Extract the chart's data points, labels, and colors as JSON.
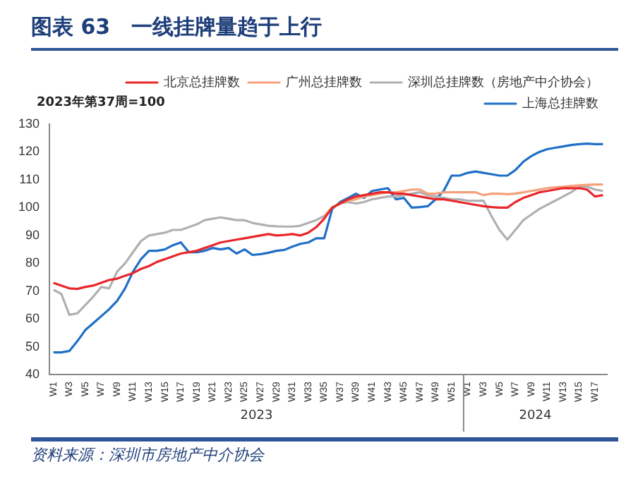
{
  "chart_data": {
    "type": "line",
    "title": "图表 63　一线挂牌量趋于上行",
    "subtitle": "2023年第37周=100",
    "categories": [
      "W1",
      null,
      "W3",
      null,
      "W5",
      null,
      "W7",
      null,
      "W9",
      null,
      "W11",
      null,
      "W13",
      null,
      "W15",
      null,
      "W17",
      null,
      "W19",
      null,
      "W21",
      null,
      "W23",
      null,
      "W25",
      null,
      "W27",
      null,
      "W29",
      null,
      "W31",
      null,
      "W33",
      null,
      "W35",
      null,
      "W37",
      null,
      "W39",
      null,
      "W41",
      null,
      "W43",
      null,
      "W45",
      null,
      "W47",
      null,
      "W49",
      null,
      "W51",
      null,
      "W1",
      null,
      "W3",
      null,
      "W5",
      null,
      "W7",
      null,
      "W9",
      null,
      "W11",
      null,
      "W13",
      null,
      "W15",
      null,
      "W17",
      null
    ],
    "series": [
      {
        "name": "北京总挂牌数",
        "color": "#e8262a",
        "values": [
          73,
          72,
          71,
          70.8,
          71.5,
          72,
          73,
          74,
          74.5,
          75.5,
          76.5,
          78,
          79,
          80.5,
          81.5,
          82.5,
          83.5,
          84,
          84.5,
          85.5,
          86.5,
          87.5,
          88,
          88.5,
          89,
          89.5,
          90,
          90.5,
          90,
          90.2,
          90.5,
          90,
          91,
          93,
          96,
          100,
          101.5,
          103,
          104,
          104.5,
          105,
          105.5,
          105.5,
          105,
          105,
          104.5,
          104,
          103.5,
          103,
          103,
          102.5,
          102,
          101.5,
          101,
          100.5,
          100.2,
          100,
          100,
          102,
          103.5,
          104.5,
          105.5,
          106,
          106.5,
          107,
          107,
          107,
          106.5,
          104,
          104.5
        ]
      },
      {
        "name": "广州总挂牌数",
        "color": "#f5a07a",
        "values": [
          null,
          null,
          null,
          null,
          null,
          null,
          null,
          null,
          null,
          null,
          null,
          null,
          null,
          null,
          null,
          null,
          null,
          null,
          null,
          null,
          null,
          null,
          null,
          null,
          null,
          null,
          null,
          null,
          null,
          null,
          null,
          null,
          null,
          null,
          97,
          100,
          101.5,
          102.5,
          103,
          104,
          104.5,
          105,
          105.5,
          105.5,
          106,
          106.5,
          106.5,
          105,
          105,
          105.5,
          105.5,
          105.5,
          105.5,
          105.5,
          104.5,
          105,
          105,
          104.8,
          105,
          105.5,
          106,
          106.5,
          107,
          107.3,
          107.5,
          107.8,
          108,
          108.2,
          108.3,
          108.3
        ]
      },
      {
        "name": "深圳总挂牌数（房地产中介协会）",
        "color": "#b0b0b0",
        "values": [
          70.5,
          69,
          61.5,
          62,
          65,
          68,
          71.5,
          71,
          77,
          80,
          84,
          88,
          90,
          90.5,
          91,
          92,
          92,
          93,
          94,
          95.5,
          96,
          96.5,
          96,
          95.5,
          95.5,
          94.5,
          94,
          93.5,
          93.3,
          93.2,
          93.2,
          93.5,
          94.5,
          95.5,
          97,
          100,
          101.5,
          102,
          101.5,
          102,
          103,
          103.5,
          104,
          104,
          104.5,
          105,
          105.5,
          104.5,
          104,
          103.5,
          103,
          103,
          102.5,
          102.5,
          102.5,
          97,
          92,
          88.5,
          92,
          95.5,
          97.5,
          99.5,
          101,
          102.5,
          104,
          105.5,
          107.5,
          107.5,
          106.5,
          106
        ]
      },
      {
        "name": "上海总挂牌数",
        "color": "#1f6fc8",
        "values": [
          48,
          48,
          48.5,
          52,
          56,
          58.5,
          61,
          63.5,
          66.5,
          71,
          77,
          81.5,
          84.5,
          84.5,
          85,
          86.5,
          87.5,
          84,
          84,
          84.5,
          85.5,
          85,
          85.5,
          83.5,
          85,
          83,
          83.3,
          83.8,
          84.5,
          84.8,
          86,
          87,
          87.5,
          89,
          89,
          99.5,
          102,
          103.5,
          105,
          103.5,
          106,
          106.5,
          107,
          103,
          103.5,
          100,
          100.2,
          100.5,
          103,
          106,
          111.5,
          111.5,
          112.5,
          113,
          112.5,
          112,
          111.5,
          111.5,
          113.5,
          116.5,
          118.5,
          120,
          121,
          121.5,
          122,
          122.5,
          122.8,
          123,
          122.8,
          122.8
        ]
      }
    ],
    "ylim": [
      40,
      130
    ],
    "yticks": [
      40,
      50,
      60,
      70,
      80,
      90,
      100,
      110,
      120,
      130
    ],
    "grid": false,
    "legend": "top",
    "marker": "none",
    "line_style": "solid",
    "annotations": [
      "2023",
      "2024",
      "资料来源：深圳市房地产中介协会"
    ]
  }
}
